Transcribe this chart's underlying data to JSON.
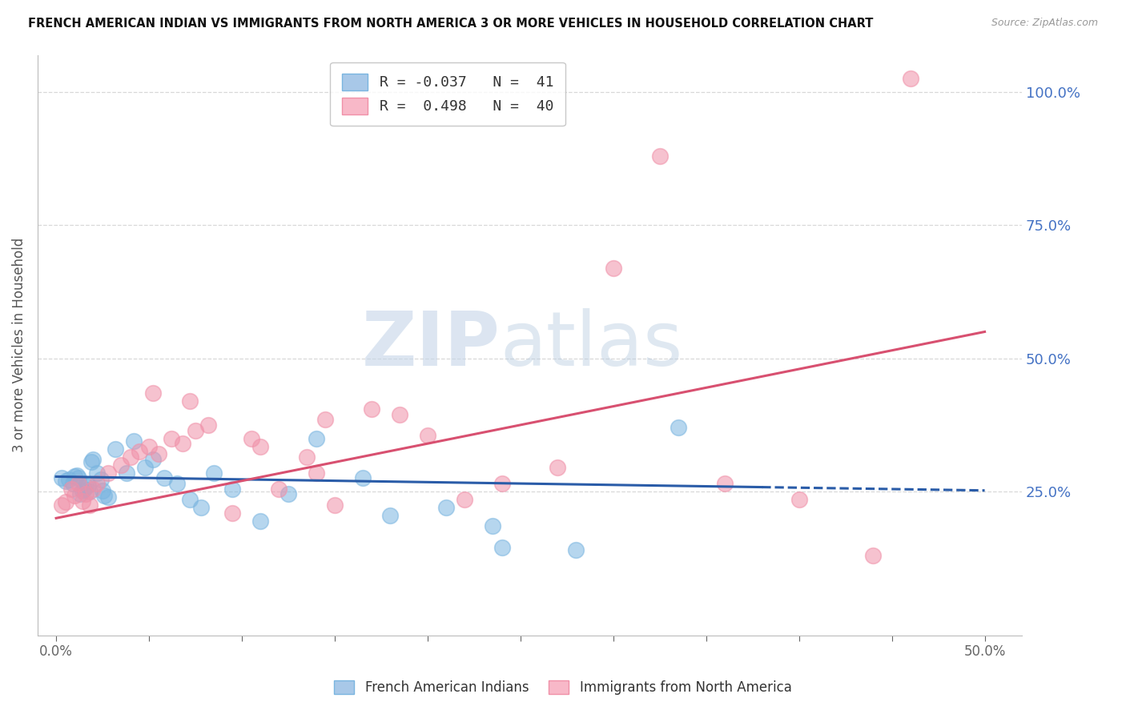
{
  "title": "FRENCH AMERICAN INDIAN VS IMMIGRANTS FROM NORTH AMERICA 3 OR MORE VEHICLES IN HOUSEHOLD CORRELATION CHART",
  "source": "Source: ZipAtlas.com",
  "ylabel": "3 or more Vehicles in Household",
  "xtick_labels": [
    "0.0%",
    "",
    "",
    "",
    "",
    "",
    "",
    "",
    "",
    "",
    "50.0%"
  ],
  "xtick_vals": [
    0,
    5,
    10,
    15,
    20,
    25,
    30,
    35,
    40,
    45,
    50
  ],
  "ytick_labels_right": [
    "100.0%",
    "75.0%",
    "50.0%",
    "25.0%"
  ],
  "ytick_vals": [
    100,
    75,
    50,
    25
  ],
  "xlim": [
    -1,
    52
  ],
  "ylim": [
    -2,
    107
  ],
  "legend_labels_bottom": [
    "French American Indians",
    "Immigrants from North America"
  ],
  "blue_color": "#7ab5e0",
  "pink_color": "#f090a8",
  "blue_trend_x": [
    0,
    50
  ],
  "blue_trend_y": [
    27.8,
    25.2
  ],
  "pink_trend_x": [
    0,
    50
  ],
  "pink_trend_y": [
    20.0,
    55.0
  ],
  "blue_dashed_start_x": 38,
  "watermark_zip": "ZIP",
  "watermark_atlas": "atlas",
  "grid_color": "#d8d8d8",
  "right_axis_color": "#4472c4",
  "blue_scatter": [
    [
      0.3,
      27.5
    ],
    [
      0.5,
      27.0
    ],
    [
      0.7,
      27.2
    ],
    [
      0.9,
      26.5
    ],
    [
      1.0,
      27.8
    ],
    [
      1.1,
      28.0
    ],
    [
      1.2,
      27.5
    ],
    [
      1.3,
      24.5
    ],
    [
      1.4,
      25.2
    ],
    [
      1.5,
      25.5
    ],
    [
      1.6,
      26.0
    ],
    [
      1.7,
      26.2
    ],
    [
      1.8,
      25.0
    ],
    [
      1.9,
      30.5
    ],
    [
      2.0,
      31.0
    ],
    [
      2.2,
      28.5
    ],
    [
      2.4,
      27.3
    ],
    [
      2.5,
      25.2
    ],
    [
      2.6,
      24.2
    ],
    [
      2.8,
      24.0
    ],
    [
      3.2,
      33.0
    ],
    [
      3.8,
      28.5
    ],
    [
      4.2,
      34.5
    ],
    [
      4.8,
      29.5
    ],
    [
      5.2,
      31.0
    ],
    [
      5.8,
      27.5
    ],
    [
      6.5,
      26.5
    ],
    [
      7.2,
      23.5
    ],
    [
      7.8,
      22.0
    ],
    [
      8.5,
      28.5
    ],
    [
      9.5,
      25.5
    ],
    [
      11.0,
      19.5
    ],
    [
      12.5,
      24.5
    ],
    [
      14.0,
      35.0
    ],
    [
      16.5,
      27.5
    ],
    [
      18.0,
      20.5
    ],
    [
      21.0,
      22.0
    ],
    [
      23.5,
      18.5
    ],
    [
      28.0,
      14.0
    ],
    [
      33.5,
      37.0
    ],
    [
      24.0,
      14.5
    ]
  ],
  "pink_scatter": [
    [
      0.3,
      22.5
    ],
    [
      0.5,
      23.0
    ],
    [
      0.8,
      25.5
    ],
    [
      1.0,
      24.2
    ],
    [
      1.2,
      26.5
    ],
    [
      1.4,
      23.2
    ],
    [
      1.6,
      24.5
    ],
    [
      1.8,
      22.5
    ],
    [
      2.0,
      25.5
    ],
    [
      2.2,
      26.5
    ],
    [
      2.8,
      28.5
    ],
    [
      3.5,
      30.0
    ],
    [
      4.0,
      31.5
    ],
    [
      4.5,
      32.5
    ],
    [
      5.0,
      33.5
    ],
    [
      5.5,
      32.0
    ],
    [
      6.2,
      35.0
    ],
    [
      6.8,
      34.0
    ],
    [
      7.5,
      36.5
    ],
    [
      8.2,
      37.5
    ],
    [
      9.5,
      21.0
    ],
    [
      11.0,
      33.5
    ],
    [
      12.0,
      25.5
    ],
    [
      13.5,
      31.5
    ],
    [
      14.5,
      38.5
    ],
    [
      15.0,
      22.5
    ],
    [
      17.0,
      40.5
    ],
    [
      18.5,
      39.5
    ],
    [
      20.0,
      35.5
    ],
    [
      22.0,
      23.5
    ],
    [
      24.0,
      26.5
    ],
    [
      27.0,
      29.5
    ],
    [
      30.0,
      67.0
    ],
    [
      32.5,
      88.0
    ],
    [
      5.2,
      43.5
    ],
    [
      7.2,
      42.0
    ],
    [
      10.5,
      35.0
    ],
    [
      14.0,
      28.5
    ],
    [
      36.0,
      26.5
    ],
    [
      40.0,
      23.5
    ],
    [
      44.0,
      13.0
    ],
    [
      46.0,
      102.5
    ]
  ]
}
